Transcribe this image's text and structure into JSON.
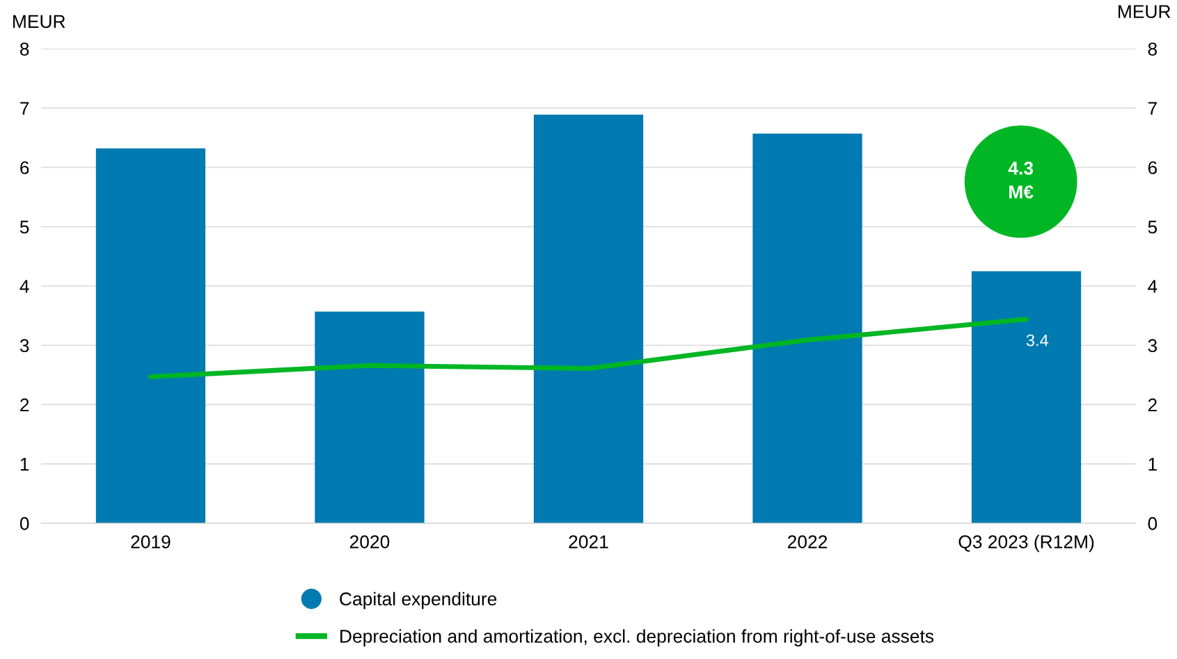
{
  "chart_data": {
    "type": "bar",
    "ylabel": "MEUR",
    "y2label": "MEUR",
    "categories": [
      "2019",
      "2020",
      "2021",
      "2022",
      "Q3 2023 (R12M)"
    ],
    "series": [
      {
        "name": "Capital expenditure",
        "color": "#007ab0",
        "values": [
          6.32,
          3.57,
          6.89,
          6.57,
          4.25
        ]
      },
      {
        "name": "Depreciation and amortization, excl. depreciation from right-of-use assets",
        "type": "line",
        "color": "#00b624",
        "values": [
          2.47,
          2.66,
          2.61,
          3.09,
          3.44
        ],
        "value_labels": [
          null,
          null,
          null,
          null,
          "3.4"
        ]
      }
    ],
    "annotations": [
      "4.3\nM€"
    ],
    "ylim": [
      0,
      8
    ],
    "yticks": [
      0,
      1,
      2,
      3,
      4,
      5,
      6,
      7,
      8
    ],
    "y2lim": [
      0,
      8
    ],
    "y2ticks": [
      0,
      1,
      2,
      3,
      4,
      5,
      6,
      7,
      8
    ],
    "grid": "y",
    "legend": "bottom"
  }
}
